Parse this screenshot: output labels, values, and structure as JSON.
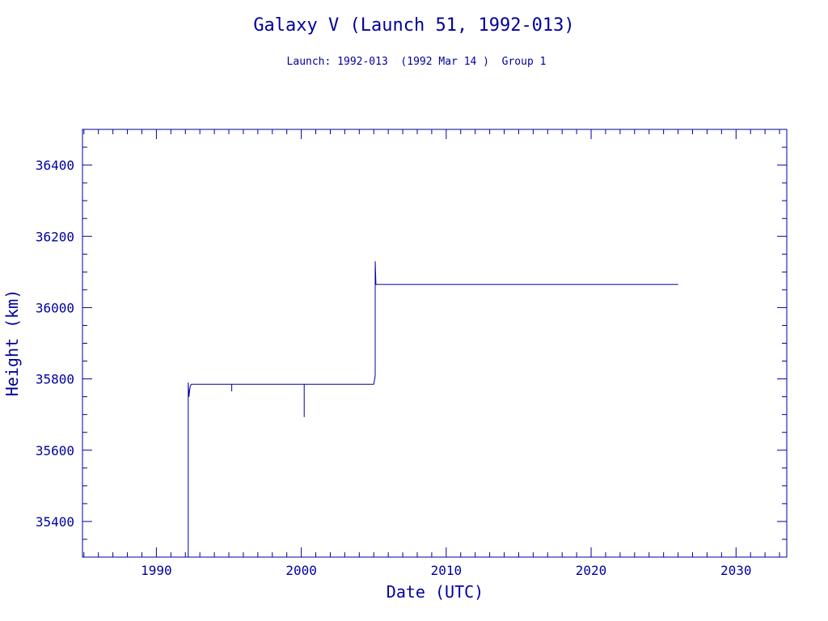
{
  "chart_data": {
    "type": "line",
    "title": "Galaxy V (Launch 51, 1992-013)",
    "subtitle": "Launch: 1992-013  (1992 Mar 14 )  Group 1",
    "xlabel": "Date (UTC)",
    "ylabel": "Height (km)",
    "xlim": [
      1984.9,
      2033.5
    ],
    "ylim": [
      35300,
      36500
    ],
    "x_ticks": [
      1990,
      2000,
      2010,
      2020,
      2030
    ],
    "y_ticks": [
      35400,
      35600,
      35800,
      36000,
      36200,
      36400
    ],
    "grid": false,
    "color": "#00009c",
    "series": [
      {
        "x": [
          1992.2,
          1992.2,
          1992.25,
          1992.3,
          1992.35,
          1992.4,
          1992.6,
          1995.2,
          1995.2,
          1995.2,
          1995.3,
          2000.2,
          2000.2,
          2000.2,
          2000.3,
          2005.0,
          2005.1,
          2005.1,
          2005.15,
          2005.2,
          2026.0
        ],
        "y": [
          35300,
          35790,
          35750,
          35770,
          35780,
          35785,
          35785,
          35785,
          35765,
          35785,
          35785,
          35785,
          35693,
          35785,
          35785,
          35785,
          35808,
          36130,
          36065,
          36065,
          36065
        ]
      }
    ]
  }
}
